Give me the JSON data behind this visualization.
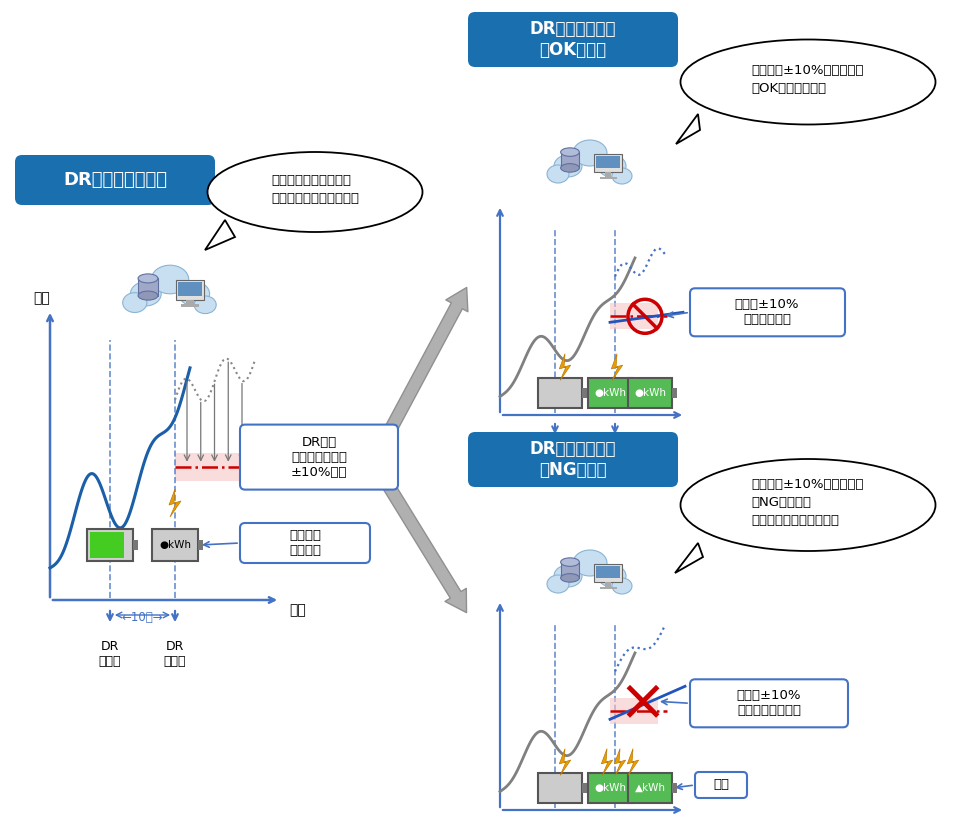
{
  "bg_color": "#ffffff",
  "left_box_title": "DR予告～開始まで",
  "ok_box_title": "DR中の実績確認\n（OK事例）",
  "ng_box_title": "DR中の実績確認\n（NG事例）",
  "left_speech": "・ベースラインの計算\n・放電量設定、放電開始",
  "ok_speech": "・実績が±10%範囲か確認\n・OKの場合、続行",
  "ng_speech": "・実績が±10%範囲か確認\n・NGの場合、\n　放電量の見直しを実績",
  "dr_label1": "DR\n予告時",
  "dr_label2": "DR\n開始時",
  "time_label": "時間",
  "time_axis_label": "時間",
  "left_note1": "DR削減\n要請量に対する\n±10%範囲",
  "left_note2": "放電量の\n当初設定",
  "ok_note": "実績が±10%\n範囲に収まる",
  "ng_note": "実績が±10%\n範囲に収まらない",
  "ng_change_label": "変更",
  "ten_min_label": "←10分→",
  "arrow_color": "#4472c4",
  "line_color_blue": "#1a5fa8",
  "line_color_gray": "#808080",
  "dash_line_color": "#cc0000",
  "band_color": "#f5c6c6",
  "note_border_color": "#4472c4",
  "box_blue": "#1a6faf"
}
